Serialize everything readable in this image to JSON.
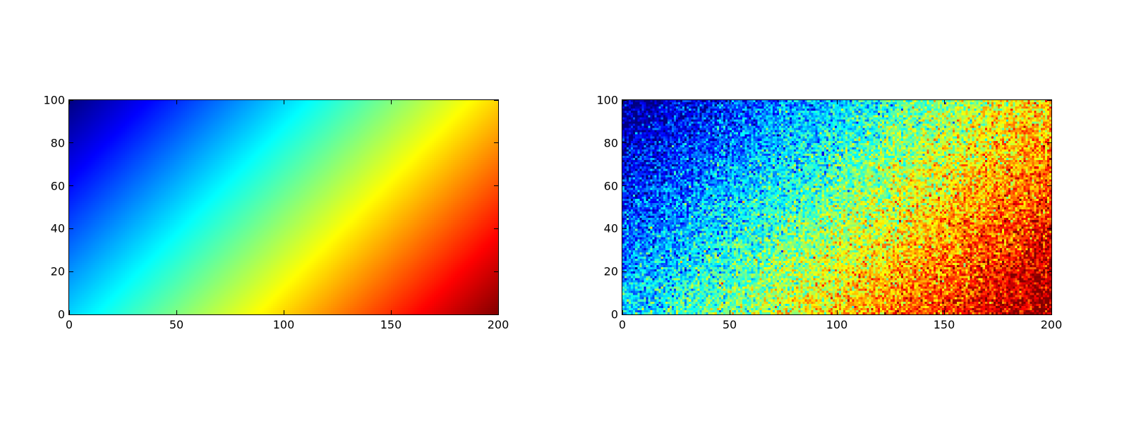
{
  "chart_data": [
    {
      "type": "heatmap",
      "colormap": "jet",
      "grid_shape": [
        100,
        200
      ],
      "z": "x - y",
      "color_range": [
        -100,
        200
      ],
      "xlim": [
        0,
        200
      ],
      "ylim": [
        0,
        100
      ],
      "xticks": [
        "0",
        "50",
        "100",
        "150",
        "200"
      ],
      "yticks": [
        "0",
        "20",
        "40",
        "60",
        "80",
        "100"
      ],
      "grid": false,
      "title": "",
      "xlabel": "",
      "ylabel": ""
    },
    {
      "type": "heatmap",
      "colormap": "jet",
      "grid_shape": [
        100,
        200
      ],
      "z": "x - y + random noise",
      "color_range": [
        -100,
        200
      ],
      "xlim": [
        0,
        200
      ],
      "ylim": [
        0,
        100
      ],
      "xticks": [
        "0",
        "50",
        "100",
        "150",
        "200"
      ],
      "yticks": [
        "0",
        "20",
        "40",
        "60",
        "80",
        "100"
      ],
      "grid": false,
      "title": "",
      "xlabel": "",
      "ylabel": ""
    }
  ]
}
